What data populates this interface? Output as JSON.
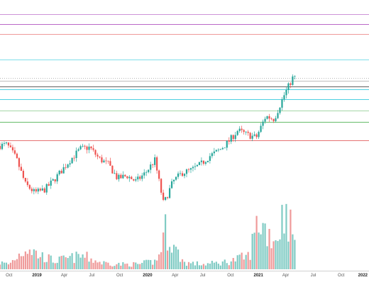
{
  "chart_data": {
    "type": "candlestick",
    "title": "",
    "xlabel": "",
    "ylabel": "",
    "grid": false,
    "legend": "none",
    "colors": {
      "up": "#26a69a",
      "down": "#ef5350",
      "volume_up": "#80cbc4",
      "volume_down": "#ef9a9a"
    },
    "x_range": [
      "2018-09-01",
      "2022-01-01"
    ],
    "y_range": [
      0,
      100
    ],
    "x_ticks": [
      {
        "date": "2018-10-01",
        "label": "Oct",
        "year": false
      },
      {
        "date": "2019-01-01",
        "label": "2019",
        "year": true
      },
      {
        "date": "2019-04-01",
        "label": "Apr",
        "year": false
      },
      {
        "date": "2019-07-01",
        "label": "Jul",
        "year": false
      },
      {
        "date": "2019-10-01",
        "label": "Oct",
        "year": false
      },
      {
        "date": "2020-01-01",
        "label": "2020",
        "year": true
      },
      {
        "date": "2020-04-01",
        "label": "Apr",
        "year": false
      },
      {
        "date": "2020-07-01",
        "label": "Jul",
        "year": false
      },
      {
        "date": "2020-10-01",
        "label": "Oct",
        "year": false
      },
      {
        "date": "2021-01-01",
        "label": "2021",
        "year": true
      },
      {
        "date": "2021-04-01",
        "label": "Apr",
        "year": false
      },
      {
        "date": "2021-07-01",
        "label": "Jul",
        "year": false
      },
      {
        "date": "2021-10-01",
        "label": "Oct",
        "year": false
      },
      {
        "date": "2022-01-01",
        "label": "2022",
        "year": true
      }
    ],
    "horizontal_levels": [
      {
        "value": 95,
        "color": "#ce93d8"
      },
      {
        "value": 91.5,
        "color": "#ba68c8"
      },
      {
        "value": 88,
        "color": "#ef9a9a"
      },
      {
        "value": 79,
        "color": "#80deea"
      },
      {
        "value": 71.5,
        "color": "#bdbdbd"
      },
      {
        "value": 69.5,
        "color": "#616161"
      },
      {
        "value": 68.5,
        "color": "#4dd0e1"
      },
      {
        "value": 65,
        "color": "#4dd0e1"
      },
      {
        "value": 61,
        "color": "#a5d6a7"
      },
      {
        "value": 57,
        "color": "#66bb6a"
      },
      {
        "value": 50.5,
        "color": "#e57373"
      }
    ],
    "price_path": [
      [
        "2018-09-01",
        48.5
      ],
      [
        "2018-10-01",
        49
      ],
      [
        "2018-11-01",
        44
      ],
      [
        "2018-12-01",
        35
      ],
      [
        "2019-01-01",
        32
      ],
      [
        "2019-02-01",
        33
      ],
      [
        "2019-03-01",
        36
      ],
      [
        "2019-04-01",
        40
      ],
      [
        "2019-05-01",
        44
      ],
      [
        "2019-06-01",
        47.5
      ],
      [
        "2019-07-01",
        48
      ],
      [
        "2019-08-01",
        44
      ],
      [
        "2019-09-01",
        42
      ],
      [
        "2019-10-01",
        37
      ],
      [
        "2019-11-01",
        38
      ],
      [
        "2019-12-01",
        36
      ],
      [
        "2020-01-01",
        39
      ],
      [
        "2020-02-01",
        43.5
      ],
      [
        "2020-03-01",
        28
      ],
      [
        "2020-04-01",
        36
      ],
      [
        "2020-05-01",
        39
      ],
      [
        "2020-06-01",
        40
      ],
      [
        "2020-07-01",
        42
      ],
      [
        "2020-08-01",
        45
      ],
      [
        "2020-09-01",
        47
      ],
      [
        "2020-10-01",
        50
      ],
      [
        "2020-11-01",
        54
      ],
      [
        "2020-12-01",
        52.5
      ],
      [
        "2021-01-01",
        51.5
      ],
      [
        "2021-02-01",
        59
      ],
      [
        "2021-03-01",
        58
      ],
      [
        "2021-04-01",
        66
      ],
      [
        "2021-05-01",
        72.5
      ]
    ],
    "volume_path": [
      [
        "2018-09-01",
        4
      ],
      [
        "2018-10-01",
        3
      ],
      [
        "2018-12-01",
        14
      ],
      [
        "2019-01-01",
        9
      ],
      [
        "2019-03-01",
        5
      ],
      [
        "2019-06-01",
        8
      ],
      [
        "2019-08-01",
        4
      ],
      [
        "2019-10-01",
        3
      ],
      [
        "2019-12-01",
        3
      ],
      [
        "2020-02-01",
        5
      ],
      [
        "2020-03-01",
        24
      ],
      [
        "2020-04-01",
        12
      ],
      [
        "2020-05-01",
        4
      ],
      [
        "2020-07-01",
        3
      ],
      [
        "2020-09-01",
        4
      ],
      [
        "2020-10-01",
        5
      ],
      [
        "2020-12-01",
        8
      ],
      [
        "2021-01-01",
        30
      ],
      [
        "2021-02-01",
        22
      ],
      [
        "2021-03-01",
        18
      ],
      [
        "2021-04-01",
        38
      ],
      [
        "2021-05-01",
        15
      ]
    ]
  }
}
